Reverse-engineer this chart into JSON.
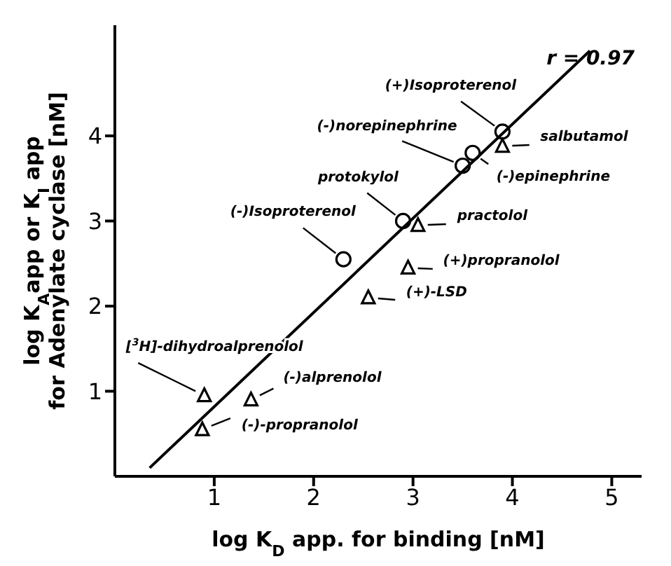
{
  "chart_data": {
    "type": "scatter",
    "xlabel": "log K$_{D}$ app. for binding [nM]",
    "ylabel": "log K$_{A}$app or K$_{I}$ app for Adenylate cyclase [nM]",
    "xlim": [
      0,
      5.3
    ],
    "ylim": [
      0,
      5.3
    ],
    "xticks": [
      1,
      2,
      3,
      4,
      5
    ],
    "yticks": [
      1,
      2,
      3,
      4
    ],
    "series": [
      {
        "marker": "circle",
        "color": "#000000",
        "x": [
          3.9,
          3.5,
          3.6,
          2.9,
          2.3
        ],
        "values": [
          4.05,
          3.65,
          3.8,
          3.0,
          2.55
        ]
      },
      {
        "marker": "triangle",
        "color": "#000000",
        "x": [
          3.9,
          3.05,
          2.95,
          2.55,
          0.9,
          1.37,
          0.88
        ],
        "values": [
          3.88,
          2.95,
          2.45,
          2.1,
          0.95,
          0.9,
          0.55
        ]
      },
      {
        "type": "line",
        "marker": "none",
        "color": "#000000",
        "x": [
          0.35,
          4.78
        ],
        "values": [
          0.1,
          5.0
        ]
      }
    ],
    "annotations": [
      {
        "text": "(+)Isoproterenol",
        "x": 3.9,
        "y": 4.05
      },
      {
        "text": "salbutamol",
        "x": 3.9,
        "y": 3.88
      },
      {
        "text": "(-)norepinephrine",
        "x": 3.5,
        "y": 3.65
      },
      {
        "text": "(-)epinephrine",
        "x": 3.6,
        "y": 3.8
      },
      {
        "text": "protokylol",
        "x": 2.9,
        "y": 3.0
      },
      {
        "text": "practolol",
        "x": 3.05,
        "y": 2.95
      },
      {
        "text": "(-)Isoproterenol",
        "x": 2.3,
        "y": 2.55
      },
      {
        "text": "(+)propranolol",
        "x": 2.95,
        "y": 2.45
      },
      {
        "text": "(+)-LSD",
        "x": 2.55,
        "y": 2.1
      },
      {
        "text": "[$^{3}$H]-dihydroalprenolol",
        "x": 0.9,
        "y": 0.95
      },
      {
        "text": "(-)alprenolol",
        "x": 1.37,
        "y": 0.9
      },
      {
        "text": "(-)-propranolol",
        "x": 0.88,
        "y": 0.55
      },
      "r = 0.97"
    ]
  }
}
